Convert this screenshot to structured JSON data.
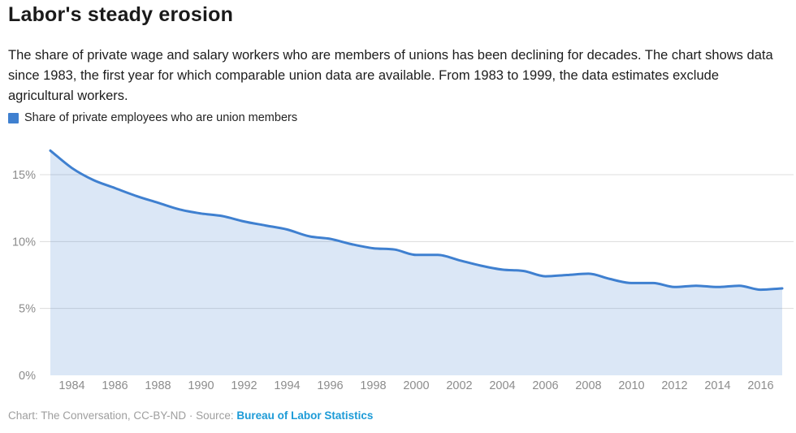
{
  "header": {
    "title": "Labor's steady erosion",
    "description": "The share of private wage and salary workers who are members of unions has been declining for decades. The chart shows data since 1983, the first year for which comparable union data are available. From 1983 to 1999, the data estimates exclude agricultural workers."
  },
  "legend": {
    "label": "Share of private employees who are union members",
    "swatch_color": "#3f80d0"
  },
  "chart_data": {
    "type": "area",
    "title": "Labor's steady erosion",
    "x": [
      1983,
      1984,
      1985,
      1986,
      1987,
      1988,
      1989,
      1990,
      1991,
      1992,
      1993,
      1994,
      1995,
      1996,
      1997,
      1998,
      1999,
      2000,
      2001,
      2002,
      2003,
      2004,
      2005,
      2006,
      2007,
      2008,
      2009,
      2010,
      2011,
      2012,
      2013,
      2014,
      2015,
      2016,
      2017
    ],
    "series": [
      {
        "name": "Share of private employees who are union members",
        "values": [
          16.8,
          15.5,
          14.6,
          14.0,
          13.4,
          12.9,
          12.4,
          12.1,
          11.9,
          11.5,
          11.2,
          10.9,
          10.4,
          10.2,
          9.8,
          9.5,
          9.4,
          9.0,
          9.0,
          8.6,
          8.2,
          7.9,
          7.8,
          7.4,
          7.5,
          7.6,
          7.2,
          6.9,
          6.9,
          6.6,
          6.7,
          6.6,
          6.7,
          6.4,
          6.5
        ]
      }
    ],
    "xlabel": "",
    "ylabel": "",
    "xlim": [
      1983,
      2017
    ],
    "ylim": [
      0,
      17.8
    ],
    "grid": true,
    "legend_position": "top-left",
    "yticks": [
      {
        "value": 0,
        "label": "0%"
      },
      {
        "value": 5,
        "label": "5%"
      },
      {
        "value": 10,
        "label": "10%"
      },
      {
        "value": 15,
        "label": "15%"
      }
    ],
    "xticks": [
      {
        "value": 1984,
        "label": "1984"
      },
      {
        "value": 1986,
        "label": "1986"
      },
      {
        "value": 1988,
        "label": "1988"
      },
      {
        "value": 1990,
        "label": "1990"
      },
      {
        "value": 1992,
        "label": "1992"
      },
      {
        "value": 1994,
        "label": "1994"
      },
      {
        "value": 1996,
        "label": "1996"
      },
      {
        "value": 1998,
        "label": "1998"
      },
      {
        "value": 2000,
        "label": "2000"
      },
      {
        "value": 2002,
        "label": "2002"
      },
      {
        "value": 2004,
        "label": "2004"
      },
      {
        "value": 2006,
        "label": "2006"
      },
      {
        "value": 2008,
        "label": "2008"
      },
      {
        "value": 2010,
        "label": "2010"
      },
      {
        "value": 2012,
        "label": "2012"
      },
      {
        "value": 2014,
        "label": "2014"
      },
      {
        "value": 2016,
        "label": "2016"
      }
    ],
    "line_color": "#3f80d0",
    "fill_color_rgba": "rgba(63,128,208,0.19)",
    "grid_color": "#dcdcdc"
  },
  "footer": {
    "attribution": "Chart: The Conversation, CC-BY-ND · Source: ",
    "source_link": "Bureau of Labor Statistics"
  }
}
